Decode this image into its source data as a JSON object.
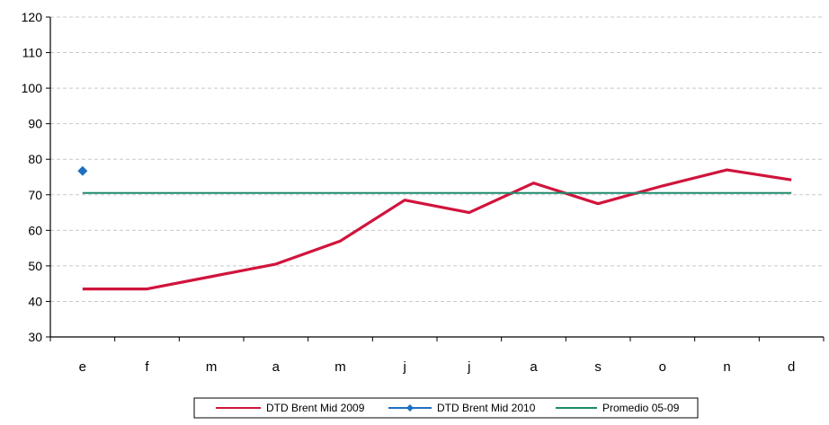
{
  "chart_data": {
    "type": "line",
    "categories": [
      "e",
      "f",
      "m",
      "a",
      "m",
      "j",
      "j",
      "a",
      "s",
      "o",
      "n",
      "d"
    ],
    "ylim": [
      30,
      120
    ],
    "yticks": [
      30,
      40,
      50,
      60,
      70,
      80,
      90,
      100,
      110,
      120
    ],
    "grid": true,
    "legend_position": "bottom",
    "series": [
      {
        "name": "DTD Brent Mid 2009",
        "color": "#d0143c",
        "marker": "none",
        "values": [
          43.5,
          43.5,
          47,
          50.5,
          57,
          68.5,
          65,
          73.3,
          67.5,
          72.5,
          77,
          74.2
        ]
      },
      {
        "name": "DTD Brent Mid 2010",
        "color": "#1f6fc1",
        "marker": "diamond",
        "values": [
          76.7,
          null,
          null,
          null,
          null,
          null,
          null,
          null,
          null,
          null,
          null,
          null
        ]
      },
      {
        "name": "Promedio 05-09",
        "color": "#1d8a6b",
        "marker": "none",
        "values": [
          70.5,
          70.5,
          70.5,
          70.5,
          70.5,
          70.5,
          70.5,
          70.5,
          70.5,
          70.5,
          70.5,
          70.5
        ]
      }
    ]
  }
}
